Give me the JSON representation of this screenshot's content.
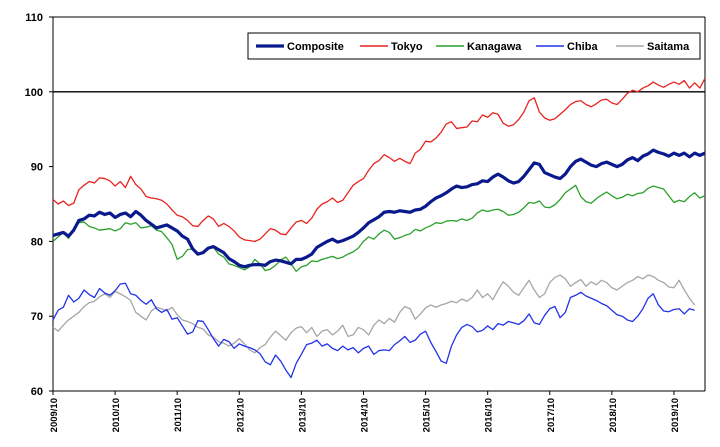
{
  "chart_data": {
    "type": "line",
    "title": "",
    "xlabel": "",
    "ylabel": "",
    "ylim": [
      60,
      110
    ],
    "yticks": [
      "60",
      "70",
      "80",
      "90",
      "100",
      "110"
    ],
    "reference_line": 100,
    "grid": false,
    "legend_position": "top-right",
    "x_start": "2009/10",
    "x_ticks": [
      "2009/10",
      "2010/10",
      "2011/10",
      "2012/10",
      "2013/10",
      "2014/10",
      "2015/10",
      "2016/10",
      "2017/10",
      "2018/10",
      "2019/10"
    ],
    "series": [
      {
        "name": "Composite",
        "color": "#0a1a8c",
        "values": [
          80.8,
          81.0,
          81.2,
          80.7,
          81.5,
          82.8,
          83.0,
          83.5,
          83.4,
          83.9,
          83.6,
          83.8,
          83.2,
          83.6,
          83.8,
          83.3,
          84.0,
          83.5,
          82.8,
          82.3,
          81.8,
          82.0,
          82.2,
          81.8,
          81.4,
          80.7,
          80.3,
          79.0,
          78.3,
          78.5,
          79.1,
          79.3,
          78.9,
          78.5,
          77.7,
          77.3,
          76.8,
          76.6,
          76.8,
          76.9,
          76.9,
          76.8,
          77.3,
          77.5,
          77.4,
          77.2,
          77.0,
          77.6,
          77.6,
          77.9,
          78.3,
          79.2,
          79.6,
          80.0,
          80.3,
          79.9,
          80.1,
          80.4,
          80.7,
          81.2,
          81.8,
          82.5,
          82.9,
          83.3,
          83.9,
          84.0,
          83.9,
          84.1,
          84.0,
          83.9,
          84.2,
          84.3,
          84.7,
          85.3,
          85.8,
          86.1,
          86.5,
          87.0,
          87.4,
          87.2,
          87.3,
          87.6,
          87.7,
          88.1,
          88.0,
          88.6,
          89.0,
          88.6,
          88.1,
          87.8,
          88.0,
          88.7,
          89.6,
          90.5,
          90.3,
          89.2,
          88.9,
          88.6,
          88.4,
          89.0,
          90.0,
          90.7,
          91.0,
          90.6,
          90.2,
          90.0,
          90.4,
          90.6,
          90.3,
          90.0,
          90.3,
          90.9,
          91.2,
          90.8,
          91.4,
          91.7,
          92.2,
          91.9,
          91.7,
          91.4,
          91.8,
          91.5,
          91.8,
          91.3,
          91.8,
          91.5,
          91.8
        ]
      },
      {
        "name": "Tokyo",
        "color": "#e8231f",
        "values": [
          85.6,
          85.0,
          85.4,
          84.8,
          85.1,
          86.9,
          87.5,
          88.0,
          87.8,
          88.5,
          88.4,
          88.1,
          87.4,
          88.0,
          87.2,
          88.7,
          87.6,
          87.0,
          86.0,
          85.8,
          85.7,
          85.5,
          85.0,
          84.2,
          83.5,
          83.3,
          82.8,
          82.1,
          82.0,
          82.8,
          83.4,
          83.0,
          82.0,
          82.4,
          82.0,
          81.4,
          80.6,
          80.2,
          80.1,
          80.0,
          80.3,
          81.0,
          81.7,
          81.5,
          81.0,
          80.9,
          81.8,
          82.6,
          82.8,
          82.4,
          83.1,
          84.3,
          85.0,
          85.3,
          85.8,
          85.2,
          85.5,
          86.5,
          87.5,
          88.0,
          88.4,
          89.5,
          90.4,
          90.8,
          91.6,
          91.2,
          90.7,
          91.1,
          90.7,
          90.4,
          91.8,
          92.3,
          93.4,
          93.3,
          93.8,
          94.6,
          95.7,
          96.0,
          95.1,
          95.2,
          95.3,
          96.1,
          96.0,
          96.9,
          96.6,
          97.2,
          97.0,
          95.8,
          95.4,
          95.6,
          96.3,
          97.3,
          98.8,
          99.2,
          97.3,
          96.5,
          96.2,
          96.4,
          97.0,
          97.6,
          98.3,
          98.7,
          98.8,
          98.3,
          98.0,
          98.4,
          98.9,
          99.0,
          98.5,
          98.3,
          99.0,
          99.8,
          100.2,
          100.0,
          100.5,
          100.8,
          101.3,
          100.9,
          100.6,
          101.0,
          101.3,
          101.0,
          101.5,
          100.5,
          101.2,
          100.5,
          101.8
        ]
      },
      {
        "name": "Kanagawa",
        "color": "#2aa02a",
        "values": [
          80.0,
          80.6,
          81.2,
          80.4,
          81.6,
          82.5,
          82.6,
          82.0,
          81.8,
          81.5,
          81.6,
          81.7,
          81.4,
          81.7,
          82.5,
          82.3,
          82.5,
          81.8,
          81.9,
          82.1,
          81.5,
          81.3,
          80.5,
          79.6,
          77.6,
          78.0,
          78.9,
          79.0,
          78.2,
          78.4,
          79.0,
          79.2,
          78.3,
          77.9,
          77.0,
          76.8,
          76.5,
          76.2,
          76.6,
          77.6,
          77.0,
          76.1,
          76.3,
          76.8,
          77.5,
          77.9,
          77.0,
          76.0,
          76.6,
          76.8,
          77.4,
          77.3,
          77.6,
          77.8,
          78.0,
          77.7,
          77.9,
          78.3,
          78.6,
          79.1,
          80.0,
          80.6,
          80.3,
          81.0,
          81.5,
          81.2,
          80.3,
          80.5,
          80.8,
          81.0,
          81.6,
          81.4,
          81.8,
          82.1,
          82.5,
          82.4,
          82.7,
          82.8,
          82.7,
          83.0,
          82.8,
          83.1,
          83.8,
          84.2,
          84.0,
          84.2,
          84.3,
          84.0,
          83.5,
          83.6,
          83.9,
          84.5,
          85.2,
          85.1,
          85.4,
          84.6,
          84.5,
          84.9,
          85.6,
          86.5,
          87.0,
          87.5,
          86.0,
          85.3,
          85.1,
          85.7,
          86.2,
          86.6,
          86.1,
          85.7,
          85.9,
          86.3,
          86.1,
          86.4,
          86.5,
          87.1,
          87.4,
          87.2,
          87.0,
          86.1,
          85.2,
          85.5,
          85.3,
          86.0,
          86.5,
          85.8,
          86.1
        ]
      },
      {
        "name": "Chiba",
        "color": "#2233e8",
        "values": [
          69.5,
          70.8,
          71.2,
          72.8,
          71.9,
          72.4,
          73.5,
          72.9,
          72.5,
          73.7,
          73.1,
          72.8,
          73.4,
          74.3,
          74.4,
          73.0,
          72.8,
          72.1,
          71.6,
          72.2,
          71.0,
          70.5,
          70.9,
          69.6,
          69.8,
          68.7,
          67.6,
          67.9,
          69.4,
          69.3,
          68.2,
          67.0,
          66.0,
          66.9,
          66.6,
          65.7,
          66.3,
          66.0,
          65.8,
          65.5,
          65.0,
          63.9,
          63.5,
          64.8,
          64.0,
          62.8,
          61.8,
          63.7,
          64.9,
          66.2,
          66.4,
          66.8,
          66.0,
          66.3,
          65.7,
          65.4,
          66.0,
          65.5,
          65.8,
          65.1,
          65.7,
          66.0,
          64.9,
          65.4,
          65.5,
          65.4,
          66.2,
          66.7,
          67.3,
          66.5,
          66.8,
          67.6,
          68.0,
          66.5,
          65.3,
          64.0,
          63.7,
          66.0,
          67.5,
          68.5,
          68.9,
          68.6,
          67.9,
          68.1,
          68.7,
          68.2,
          69.0,
          68.8,
          69.3,
          69.1,
          68.9,
          69.4,
          70.3,
          69.1,
          68.9,
          70.1,
          71.0,
          71.3,
          69.8,
          70.5,
          72.5,
          72.8,
          73.2,
          72.7,
          72.4,
          72.1,
          71.7,
          71.4,
          70.8,
          70.2,
          70.0,
          69.5,
          69.3,
          70.0,
          71.0,
          72.4,
          73.0,
          71.5,
          70.7,
          70.6,
          70.9,
          71.0,
          70.3,
          71.0,
          70.8
        ]
      },
      {
        "name": "Saitama",
        "color": "#a6a6a6",
        "values": [
          68.5,
          68.0,
          68.8,
          69.5,
          70.0,
          70.5,
          71.3,
          71.8,
          72.0,
          72.6,
          73.0,
          72.5,
          73.3,
          73.0,
          72.6,
          72.1,
          70.5,
          70.0,
          69.5,
          70.7,
          71.2,
          71.0,
          70.7,
          71.2,
          70.2,
          69.5,
          69.3,
          69.0,
          68.5,
          68.3,
          67.5,
          67.2,
          66.6,
          66.4,
          66.0,
          66.4,
          67.0,
          66.3,
          65.5,
          65.1,
          65.8,
          66.2,
          67.2,
          68.0,
          67.4,
          66.8,
          67.8,
          68.4,
          68.6,
          67.8,
          68.5,
          67.3,
          68.0,
          68.2,
          67.5,
          68.0,
          68.8,
          67.3,
          67.5,
          68.5,
          68.2,
          67.5,
          68.8,
          69.5,
          69.0,
          69.7,
          69.2,
          70.5,
          71.3,
          71.0,
          69.6,
          70.3,
          71.1,
          71.5,
          71.2,
          71.5,
          71.7,
          72.0,
          71.8,
          72.3,
          72.0,
          72.5,
          73.5,
          72.5,
          73.0,
          72.2,
          73.5,
          74.6,
          74.0,
          73.2,
          72.8,
          73.8,
          74.8,
          73.5,
          72.5,
          73.0,
          74.5,
          75.2,
          75.5,
          75.0,
          74.0,
          74.5,
          74.9,
          74.0,
          74.6,
          74.2,
          74.8,
          74.5,
          73.8,
          73.5,
          74.0,
          74.5,
          74.8,
          75.3,
          75.0,
          75.5,
          75.3,
          74.8,
          74.5,
          73.9,
          73.8,
          74.8,
          73.5,
          72.4,
          71.5
        ]
      }
    ]
  }
}
